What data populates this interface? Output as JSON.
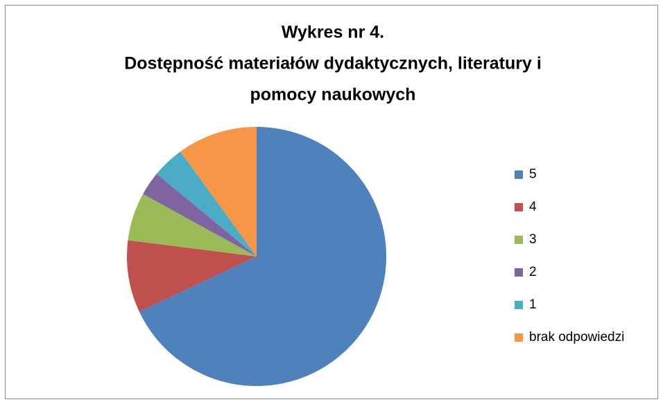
{
  "chart_data": {
    "type": "pie",
    "title": [
      "Wykres nr 4.",
      "Dostępność materiałów dydaktycznych, literatury i",
      "pomocy naukowych"
    ],
    "categories": [
      "5",
      "4",
      "3",
      "2",
      "1",
      "brak odpowiedzi"
    ],
    "values": [
      68,
      9,
      6,
      3,
      4,
      10
    ],
    "colors": [
      "#4f81bd",
      "#c0504d",
      "#9bbb59",
      "#8064a2",
      "#4bacc6",
      "#f79646"
    ],
    "legend": "right"
  }
}
